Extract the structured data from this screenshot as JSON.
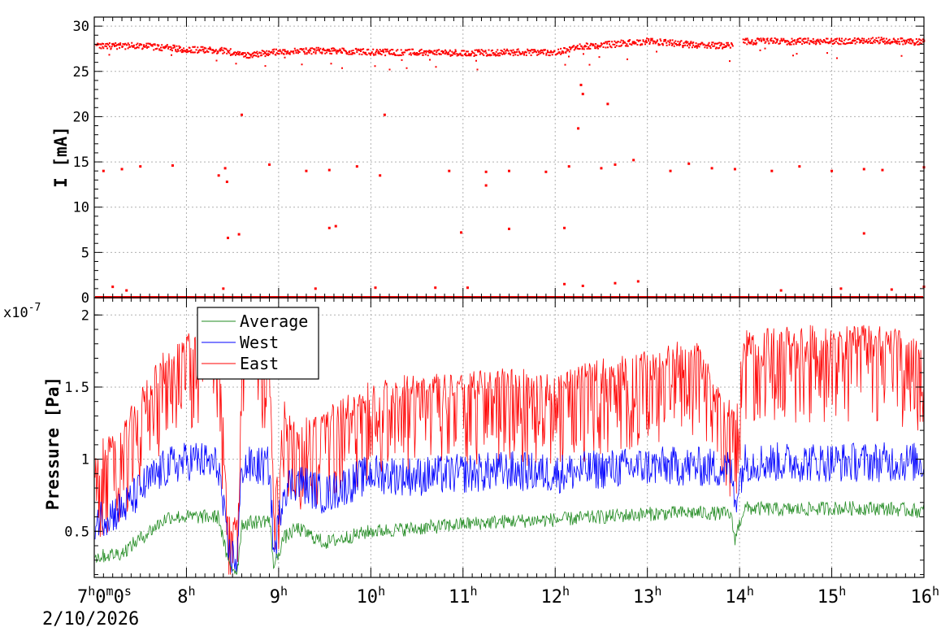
{
  "chart_data": [
    {
      "type": "scatter",
      "ylabel": "I [mA]",
      "ylim": [
        0,
        31
      ],
      "y_ticks": [
        0,
        5,
        10,
        15,
        20,
        25,
        30
      ],
      "grid": true,
      "x_range_hours": [
        7,
        16
      ],
      "series": [
        {
          "color": "#ff0000",
          "main_band_hour_value": [
            [
              7.0,
              27.9
            ],
            [
              7.5,
              27.9
            ],
            [
              8.0,
              27.5
            ],
            [
              8.4,
              27.4
            ],
            [
              8.6,
              26.8
            ],
            [
              9.0,
              27.3
            ],
            [
              9.5,
              27.4
            ],
            [
              10.0,
              27.2
            ],
            [
              10.5,
              27.2
            ],
            [
              11.0,
              27.1
            ],
            [
              11.5,
              27.2
            ],
            [
              12.0,
              27.2
            ],
            [
              12.25,
              27.8
            ],
            [
              12.5,
              28.0
            ],
            [
              13.0,
              28.4
            ],
            [
              13.5,
              28.0
            ],
            [
              13.9,
              27.9
            ],
            [
              14.05,
              28.4
            ],
            [
              14.5,
              28.4
            ],
            [
              15.0,
              28.4
            ],
            [
              15.5,
              28.5
            ],
            [
              16.0,
              28.3
            ]
          ],
          "injection_points": [
            [
              7.1,
              14.0
            ],
            [
              7.3,
              14.2
            ],
            [
              7.5,
              14.5
            ],
            [
              7.85,
              14.6
            ],
            [
              8.35,
              13.5
            ],
            [
              8.42,
              14.3
            ],
            [
              8.44,
              12.8
            ],
            [
              8.9,
              14.7
            ],
            [
              9.3,
              14.0
            ],
            [
              9.55,
              14.1
            ],
            [
              9.85,
              14.5
            ],
            [
              10.1,
              13.5
            ],
            [
              10.85,
              14.0
            ],
            [
              11.25,
              13.9
            ],
            [
              11.25,
              12.4
            ],
            [
              11.5,
              14.0
            ],
            [
              11.9,
              13.9
            ],
            [
              12.15,
              14.5
            ],
            [
              12.5,
              14.3
            ],
            [
              12.65,
              14.7
            ],
            [
              12.85,
              15.2
            ],
            [
              13.25,
              14.0
            ],
            [
              13.45,
              14.8
            ],
            [
              13.7,
              14.3
            ],
            [
              13.95,
              14.2
            ],
            [
              14.35,
              14.0
            ],
            [
              14.65,
              14.5
            ],
            [
              15.0,
              14.0
            ],
            [
              15.35,
              14.2
            ],
            [
              15.55,
              14.1
            ],
            [
              16.0,
              14.4
            ],
            [
              8.45,
              6.6
            ],
            [
              8.57,
              7.0
            ],
            [
              9.55,
              7.7
            ],
            [
              9.62,
              7.9
            ],
            [
              10.98,
              7.2
            ],
            [
              11.5,
              7.6
            ],
            [
              12.1,
              7.7
            ],
            [
              15.35,
              7.1
            ],
            [
              8.6,
              20.2
            ],
            [
              10.15,
              20.2
            ],
            [
              12.25,
              18.7
            ],
            [
              12.28,
              23.5
            ],
            [
              12.3,
              22.5
            ],
            [
              12.57,
              21.4
            ]
          ],
          "baseline_value": 0,
          "low_points": [
            [
              7.2,
              1.2
            ],
            [
              7.35,
              0.8
            ],
            [
              8.4,
              1.0
            ],
            [
              9.4,
              1.0
            ],
            [
              10.05,
              1.1
            ],
            [
              10.7,
              1.1
            ],
            [
              11.05,
              1.1
            ],
            [
              12.1,
              1.5
            ],
            [
              12.3,
              1.3
            ],
            [
              12.65,
              1.6
            ],
            [
              12.9,
              1.8
            ],
            [
              14.45,
              0.8
            ],
            [
              15.1,
              1.0
            ],
            [
              15.65,
              0.9
            ],
            [
              16.0,
              1.2
            ]
          ]
        }
      ]
    },
    {
      "type": "line",
      "ylabel": "Pressure [Pa]",
      "y_multiplier_label": "x10",
      "y_multiplier_exponent": "-7",
      "ylim": [
        0.18,
        2.12
      ],
      "y_ticks": [
        0.5,
        1,
        1.5,
        2
      ],
      "y_tick_labels": [
        "0.5",
        "1",
        "1.5",
        "2"
      ],
      "grid": true,
      "legend": "top-left",
      "x_range_hours": [
        7,
        16
      ],
      "x_ticks": [
        {
          "hour": 7,
          "main": "7",
          "sup": "h",
          "after_sup": "0",
          "sup2": "m",
          "after_sup2": "0",
          "sup3": "s"
        },
        {
          "hour": 8,
          "main": "8",
          "sup": "h"
        },
        {
          "hour": 9,
          "main": "9",
          "sup": "h"
        },
        {
          "hour": 10,
          "main": "10",
          "sup": "h"
        },
        {
          "hour": 11,
          "main": "11",
          "sup": "h"
        },
        {
          "hour": 12,
          "main": "12",
          "sup": "h"
        },
        {
          "hour": 13,
          "main": "13",
          "sup": "h"
        },
        {
          "hour": 14,
          "main": "14",
          "sup": "h"
        },
        {
          "hour": 15,
          "main": "15",
          "sup": "h"
        },
        {
          "hour": 16,
          "main": "16",
          "sup": "h"
        }
      ],
      "x_date_label": "2/10/2026",
      "series": [
        {
          "name": "Average",
          "color": "#228b22",
          "hour_value": [
            [
              7.0,
              0.32
            ],
            [
              7.3,
              0.35
            ],
            [
              7.6,
              0.5
            ],
            [
              7.8,
              0.6
            ],
            [
              8.1,
              0.6
            ],
            [
              8.35,
              0.6
            ],
            [
              8.45,
              0.28
            ],
            [
              8.55,
              0.22
            ],
            [
              8.6,
              0.55
            ],
            [
              8.9,
              0.58
            ],
            [
              8.95,
              0.25
            ],
            [
              9.05,
              0.45
            ],
            [
              9.2,
              0.52
            ],
            [
              9.5,
              0.42
            ],
            [
              10.0,
              0.5
            ],
            [
              10.5,
              0.52
            ],
            [
              11.0,
              0.55
            ],
            [
              11.5,
              0.57
            ],
            [
              12.0,
              0.58
            ],
            [
              12.5,
              0.6
            ],
            [
              13.0,
              0.62
            ],
            [
              13.5,
              0.63
            ],
            [
              13.9,
              0.62
            ],
            [
              13.95,
              0.45
            ],
            [
              14.05,
              0.66
            ],
            [
              14.5,
              0.65
            ],
            [
              15.0,
              0.66
            ],
            [
              15.5,
              0.66
            ],
            [
              16.0,
              0.64
            ]
          ]
        },
        {
          "name": "West",
          "color": "#0000ff",
          "hour_value": [
            [
              7.0,
              0.58
            ],
            [
              7.3,
              0.65
            ],
            [
              7.6,
              0.85
            ],
            [
              7.8,
              0.95
            ],
            [
              8.1,
              1.0
            ],
            [
              8.35,
              0.95
            ],
            [
              8.45,
              0.35
            ],
            [
              8.55,
              0.3
            ],
            [
              8.6,
              0.95
            ],
            [
              8.9,
              0.95
            ],
            [
              8.95,
              0.32
            ],
            [
              9.05,
              0.8
            ],
            [
              9.2,
              0.85
            ],
            [
              9.5,
              0.75
            ],
            [
              10.0,
              0.9
            ],
            [
              10.5,
              0.88
            ],
            [
              11.0,
              0.9
            ],
            [
              11.5,
              0.92
            ],
            [
              12.0,
              0.9
            ],
            [
              12.5,
              0.93
            ],
            [
              13.0,
              0.95
            ],
            [
              13.5,
              0.95
            ],
            [
              13.9,
              0.93
            ],
            [
              13.95,
              0.72
            ],
            [
              14.05,
              0.98
            ],
            [
              14.5,
              0.98
            ],
            [
              15.0,
              0.98
            ],
            [
              15.5,
              0.98
            ],
            [
              16.0,
              0.98
            ]
          ]
        },
        {
          "name": "East",
          "color": "#ff0000",
          "hour_value": [
            [
              7.0,
              0.95
            ],
            [
              7.3,
              1.1
            ],
            [
              7.6,
              1.45
            ],
            [
              7.8,
              1.65
            ],
            [
              8.1,
              1.75
            ],
            [
              8.35,
              1.8
            ],
            [
              8.45,
              0.5
            ],
            [
              8.55,
              0.45
            ],
            [
              8.6,
              1.7
            ],
            [
              8.9,
              1.7
            ],
            [
              8.95,
              0.5
            ],
            [
              9.05,
              1.3
            ],
            [
              9.2,
              1.15
            ],
            [
              9.5,
              1.2
            ],
            [
              10.0,
              1.4
            ],
            [
              10.5,
              1.45
            ],
            [
              11.0,
              1.45
            ],
            [
              11.5,
              1.5
            ],
            [
              12.0,
              1.45
            ],
            [
              12.5,
              1.55
            ],
            [
              13.0,
              1.6
            ],
            [
              13.5,
              1.7
            ],
            [
              13.9,
              1.25
            ],
            [
              13.95,
              1.2
            ],
            [
              14.05,
              1.75
            ],
            [
              14.5,
              1.78
            ],
            [
              15.0,
              1.78
            ],
            [
              15.5,
              1.78
            ],
            [
              16.0,
              1.72
            ]
          ]
        }
      ]
    }
  ]
}
